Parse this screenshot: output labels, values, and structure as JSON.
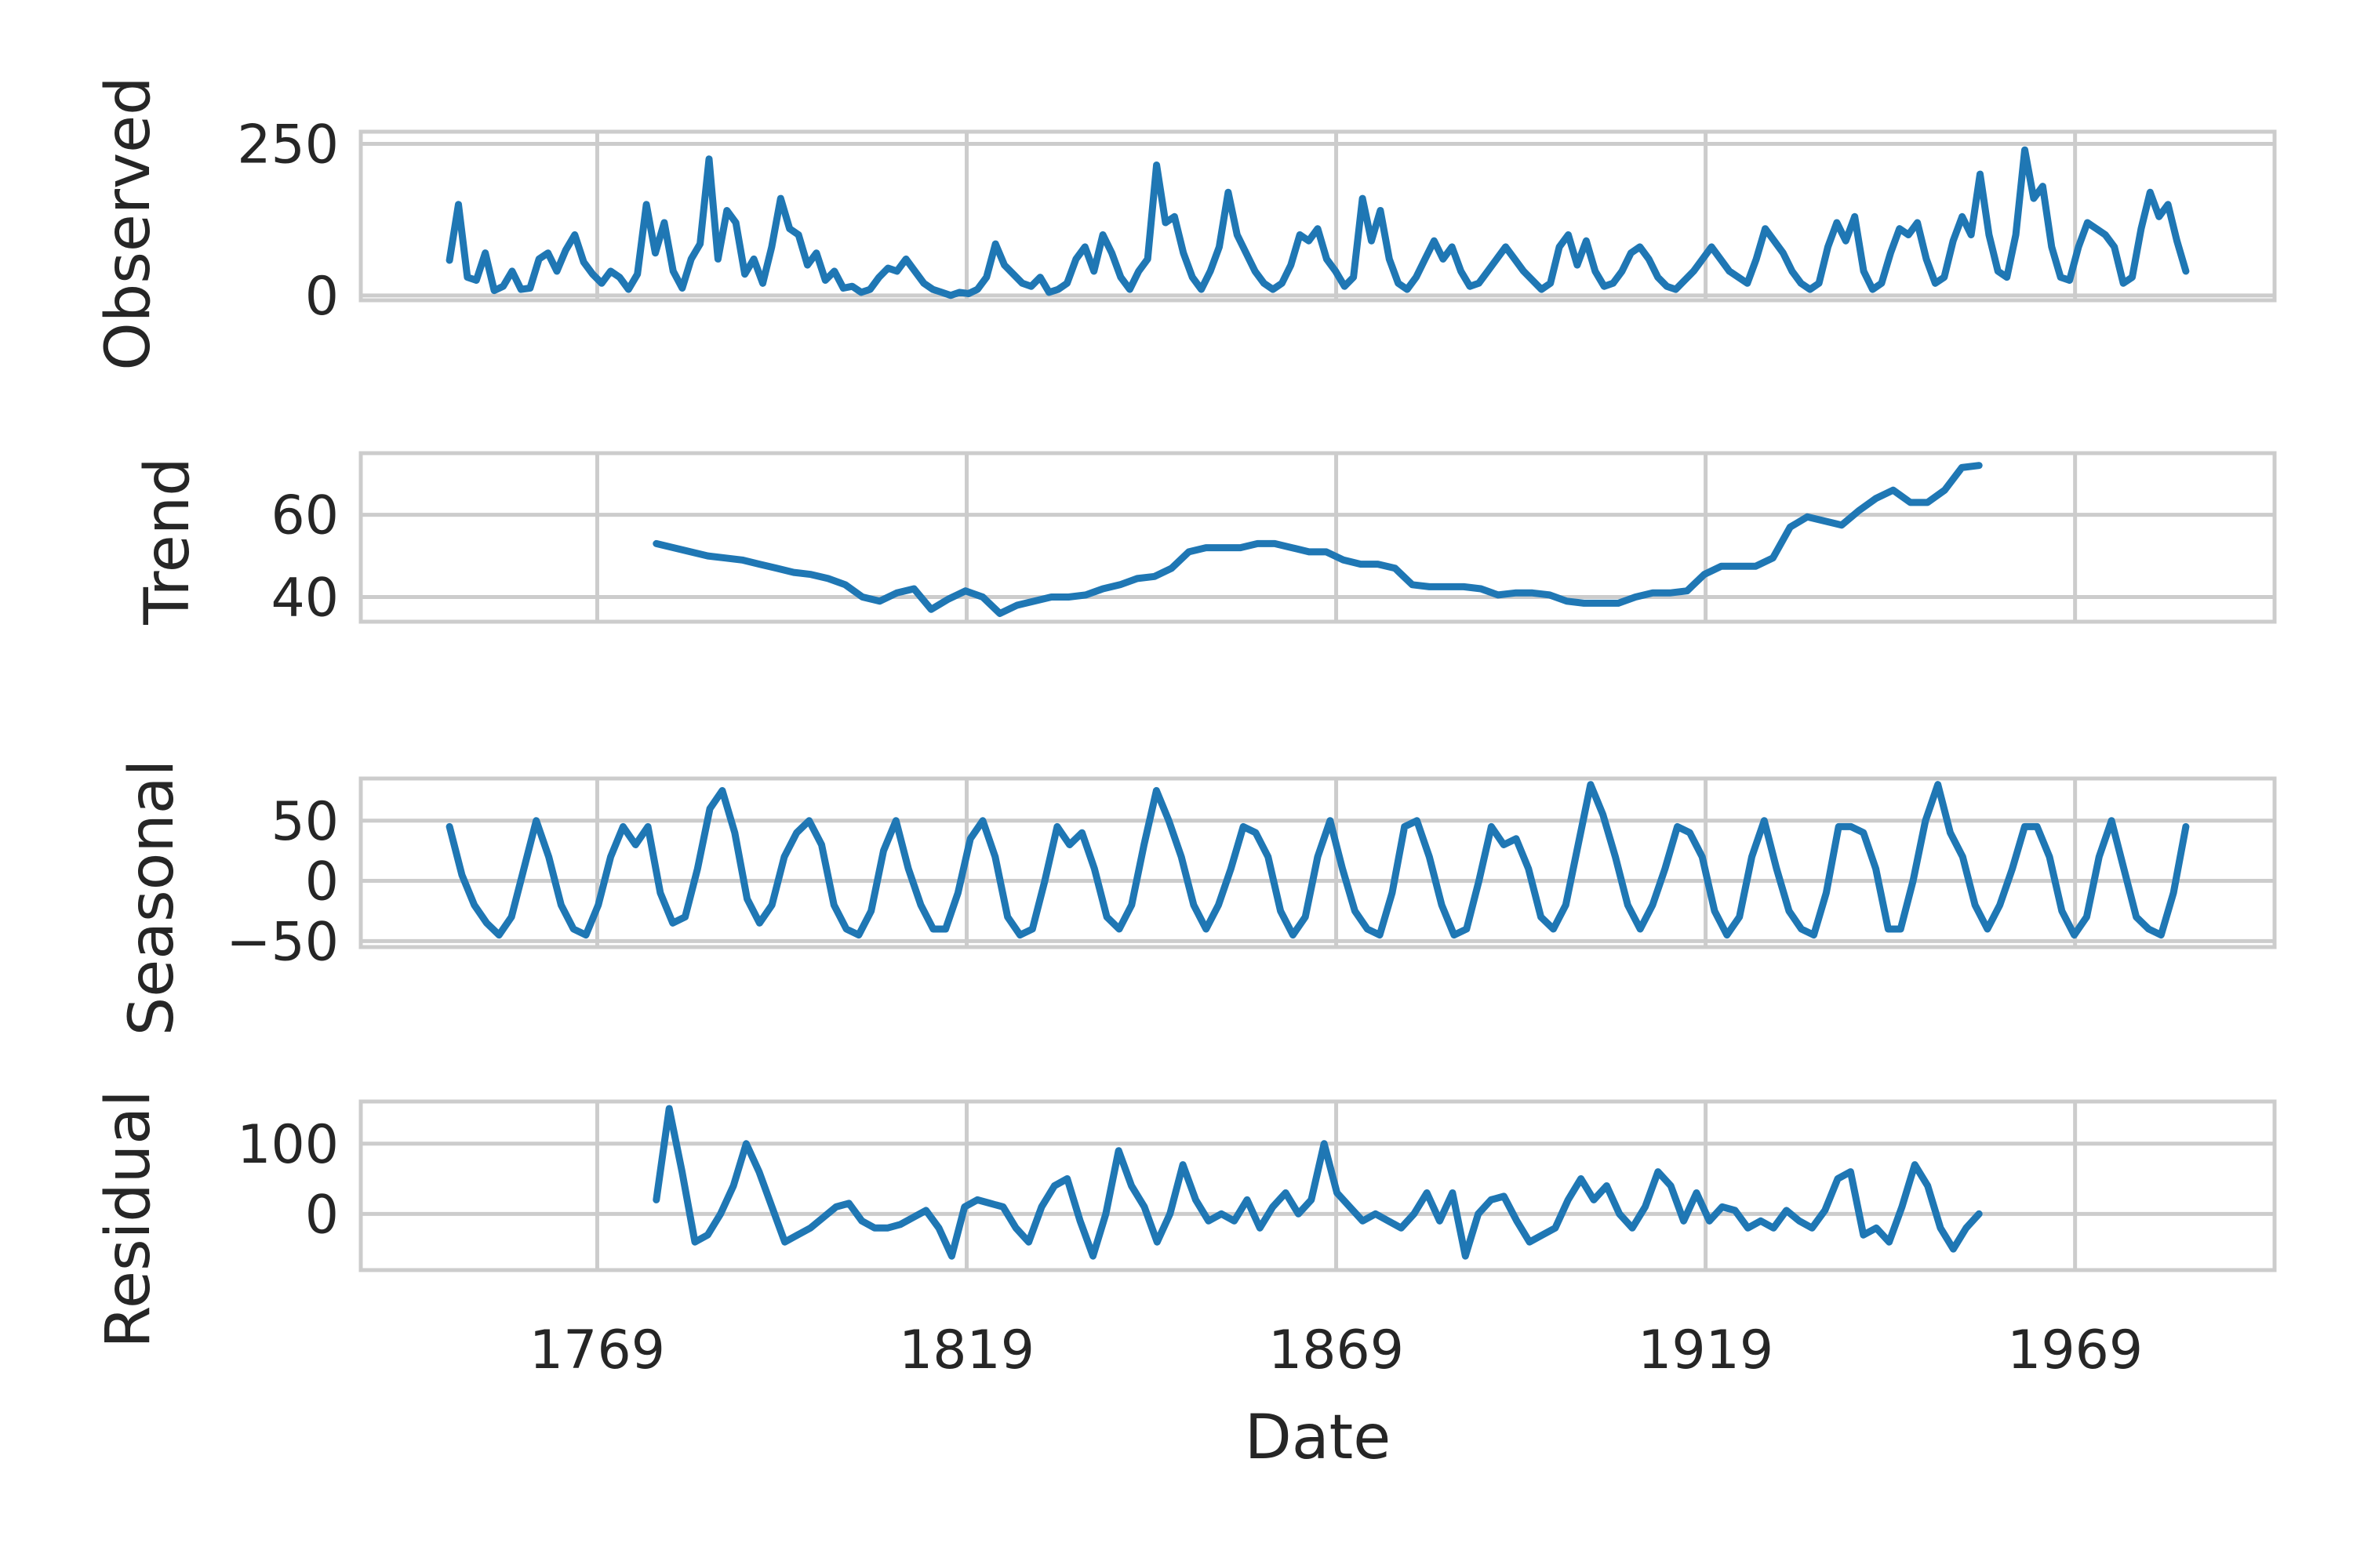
{
  "colors": {
    "series": "#1f77b4",
    "grid": "#cccccc",
    "text": "#262626"
  },
  "chart_data": {
    "type": "line",
    "xlabel": "Date",
    "x_ticks": [
      "1769",
      "1819",
      "1869",
      "1919",
      "1969"
    ],
    "xlim": [
      1737,
      1996
    ],
    "grid": true,
    "panels": [
      {
        "name": "observed",
        "ylabel": "Observed",
        "ylim": [
          -8,
          270
        ],
        "y_ticks": [
          {
            "value": 0,
            "label": "0"
          },
          {
            "value": 250,
            "label": "250"
          }
        ],
        "series": [
          {
            "x_range": [
              1749,
              1984
            ],
            "y": [
              58,
              150,
              30,
              25,
              70,
              8,
              15,
              40,
              10,
              12,
              60,
              70,
              40,
              75,
              100,
              55,
              35,
              20,
              40,
              30,
              10,
              35,
              150,
              70,
              120,
              40,
              12,
              60,
              85,
              225,
              60,
              140,
              120,
              35,
              60,
              20,
              80,
              160,
              110,
              100,
              50,
              70,
              25,
              40,
              12,
              15,
              5,
              10,
              30,
              45,
              40,
              60,
              40,
              20,
              10,
              5,
              0,
              5,
              3,
              10,
              30,
              85,
              50,
              35,
              20,
              15,
              30,
              5,
              10,
              20,
              60,
              80,
              40,
              100,
              70,
              30,
              10,
              40,
              60,
              215,
              120,
              130,
              70,
              30,
              10,
              40,
              80,
              170,
              100,
              70,
              40,
              20,
              10,
              20,
              50,
              100,
              90,
              110,
              60,
              40,
              15,
              30,
              160,
              90,
              140,
              60,
              20,
              10,
              30,
              60,
              90,
              60,
              80,
              40,
              15,
              20,
              40,
              60,
              80,
              60,
              40,
              25,
              10,
              20,
              80,
              100,
              50,
              90,
              40,
              15,
              20,
              40,
              70,
              80,
              60,
              30,
              15,
              10,
              25,
              40,
              60,
              80,
              60,
              40,
              30,
              20,
              60,
              110,
              90,
              70,
              40,
              20,
              10,
              20,
              80,
              120,
              90,
              130,
              40,
              10,
              20,
              70,
              110,
              100,
              120,
              60,
              20,
              30,
              90,
              130,
              100,
              200,
              100,
              40,
              30,
              100,
              240,
              160,
              180,
              80,
              30,
              25,
              80,
              120,
              110,
              100,
              80,
              20,
              30,
              110,
              170,
              130,
              150,
              90,
              40
            ]
          }
        ]
      },
      {
        "name": "trend",
        "ylabel": "Trend",
        "ylim": [
          34,
          75
        ],
        "y_ticks": [
          {
            "value": 40,
            "label": "40"
          },
          {
            "value": 60,
            "label": "60"
          }
        ],
        "series": [
          {
            "x_range": [
              1777,
              1956
            ],
            "y": [
              53,
              52,
              51,
              50,
              49.5,
              49,
              48,
              47,
              46,
              45.5,
              44.5,
              43,
              40,
              39,
              41,
              42,
              37,
              39.5,
              41.5,
              40,
              36,
              38,
              39,
              40,
              40,
              40.5,
              42,
              43,
              44.5,
              45,
              47,
              51,
              52,
              52,
              52,
              53,
              53,
              52,
              51,
              51,
              49,
              48,
              48,
              47,
              43,
              42.5,
              42.5,
              42.5,
              42,
              40.5,
              41,
              41,
              40.5,
              39,
              38.5,
              38.5,
              38.5,
              40,
              41,
              41,
              41.5,
              45.5,
              47.5,
              47.5,
              47.5,
              49.5,
              57,
              59.5,
              58.5,
              57.5,
              61,
              64,
              66,
              63,
              63,
              66,
              71.5,
              72
            ]
          }
        ]
      },
      {
        "name": "seasonal",
        "ylabel": "Seasonal",
        "ylim": [
          -55,
          85
        ],
        "y_ticks": [
          {
            "value": -50,
            "label": "−50"
          },
          {
            "value": 0,
            "label": "0"
          },
          {
            "value": 50,
            "label": "50"
          }
        ],
        "series": [
          {
            "x_range": [
              1749,
              1984
            ],
            "y": [
              45,
              5,
              -20,
              -35,
              -45,
              -30,
              10,
              50,
              20,
              -20,
              -40,
              -45,
              -20,
              20,
              45,
              30,
              45,
              -10,
              -35,
              -30,
              10,
              60,
              75,
              40,
              -15,
              -35,
              -20,
              20,
              40,
              50,
              30,
              -20,
              -40,
              -45,
              -25,
              25,
              50,
              10,
              -20,
              -40,
              -40,
              -10,
              35,
              50,
              20,
              -30,
              -45,
              -40,
              0,
              45,
              30,
              40,
              10,
              -30,
              -40,
              -20,
              30,
              75,
              50,
              20,
              -20,
              -40,
              -20,
              10,
              45,
              40,
              20,
              -25,
              -45,
              -30,
              20,
              50,
              10,
              -25,
              -40,
              -45,
              -10,
              45,
              50,
              20,
              -20,
              -45,
              -40,
              0,
              45,
              30,
              35,
              10,
              -30,
              -40,
              -20,
              30,
              80,
              55,
              20,
              -20,
              -40,
              -20,
              10,
              45,
              40,
              20,
              -25,
              -45,
              -30,
              20,
              50,
              10,
              -25,
              -40,
              -45,
              -10,
              45,
              45,
              40,
              10,
              -40,
              -40,
              0,
              50,
              80,
              40,
              20,
              -20,
              -40,
              -20,
              10,
              45,
              45,
              20,
              -25,
              -45,
              -30,
              20,
              50,
              10,
              -30,
              -40,
              -45,
              -10,
              45
            ]
          }
        ]
      },
      {
        "name": "residual",
        "ylabel": "Residual",
        "ylim": [
          -80,
          160
        ],
        "y_ticks": [
          {
            "value": 0,
            "label": "0"
          },
          {
            "value": 100,
            "label": "100"
          }
        ],
        "series": [
          {
            "x_range": [
              1777,
              1956
            ],
            "y": [
              20,
              150,
              60,
              -40,
              -30,
              0,
              40,
              100,
              60,
              10,
              -40,
              -30,
              -20,
              -5,
              10,
              15,
              -10,
              -20,
              -20,
              -15,
              -5,
              5,
              -20,
              -60,
              10,
              20,
              15,
              10,
              -20,
              -40,
              10,
              40,
              50,
              -10,
              -60,
              0,
              90,
              40,
              10,
              -40,
              0,
              70,
              20,
              -10,
              0,
              -10,
              20,
              -20,
              10,
              30,
              0,
              20,
              100,
              30,
              10,
              -10,
              0,
              -10,
              -20,
              0,
              30,
              -10,
              30,
              -60,
              0,
              20,
              25,
              -10,
              -40,
              -30,
              -20,
              20,
              50,
              20,
              40,
              0,
              -20,
              10,
              60,
              40,
              -10,
              30,
              -10,
              10,
              5,
              -20,
              -10,
              -20,
              5,
              -10,
              -20,
              5,
              50,
              60,
              -30,
              -20,
              -40,
              10,
              70,
              40,
              -20,
              -50,
              -20,
              0
            ]
          }
        ]
      }
    ]
  }
}
